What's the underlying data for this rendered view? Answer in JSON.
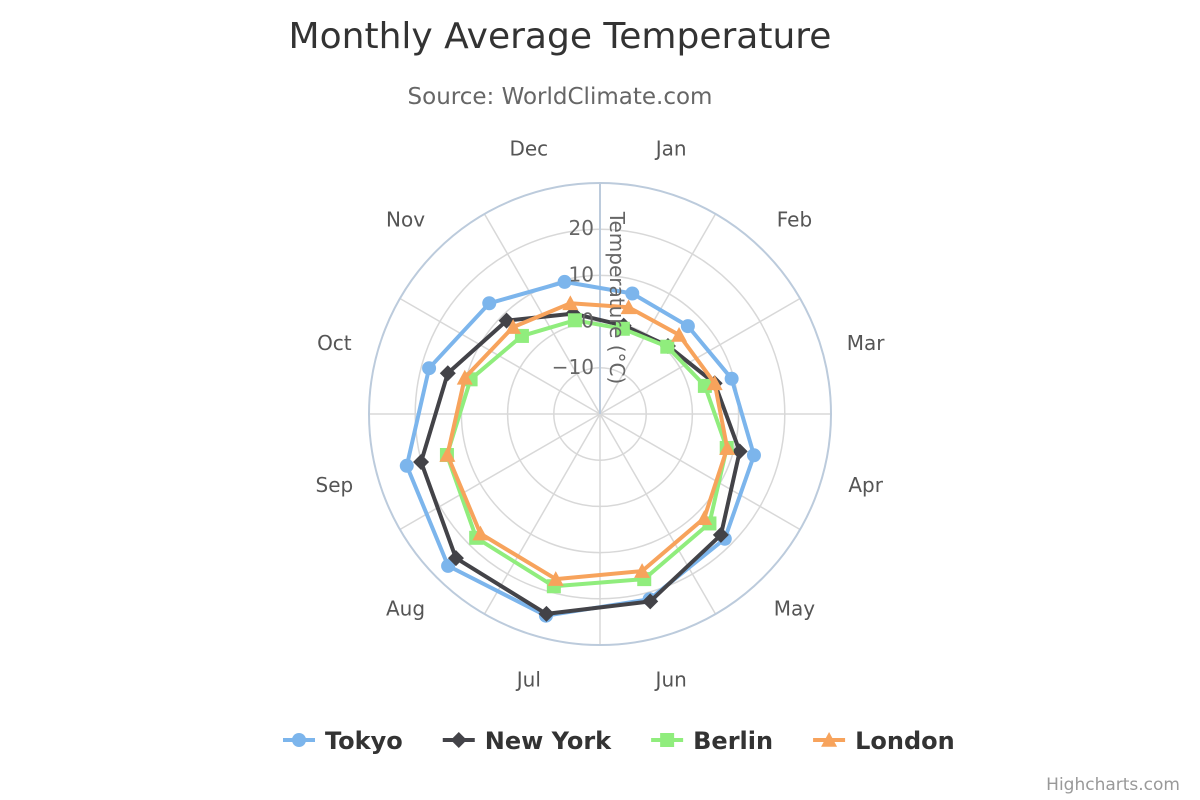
{
  "chart_data": {
    "type": "line",
    "polar": true,
    "title": "Monthly Average Temperature",
    "subtitle": "Source: WorldClimate.com",
    "categories": [
      "Jan",
      "Feb",
      "Mar",
      "Apr",
      "May",
      "Jun",
      "Jul",
      "Aug",
      "Sep",
      "Oct",
      "Nov",
      "Dec"
    ],
    "y_axis_title": "Temperature (°C)",
    "y_ticks": [
      -10,
      0,
      10,
      20
    ],
    "ylim": [
      -20,
      30
    ],
    "grid": true,
    "legend_position": "bottom-center",
    "series": [
      {
        "name": "Tokyo",
        "marker": "circle",
        "color": "#7cb5ec",
        "values": [
          7.0,
          6.9,
          9.5,
          14.5,
          18.2,
          21.5,
          25.2,
          26.5,
          23.3,
          18.3,
          13.9,
          9.6
        ]
      },
      {
        "name": "New York",
        "marker": "diamond",
        "color": "#434348",
        "values": [
          -0.2,
          0.8,
          5.7,
          11.3,
          17.0,
          22.0,
          24.8,
          24.1,
          20.1,
          14.1,
          8.6,
          2.5
        ]
      },
      {
        "name": "Berlin",
        "marker": "square",
        "color": "#90ed7d",
        "values": [
          -0.9,
          0.6,
          3.5,
          8.4,
          13.5,
          17.0,
          18.6,
          17.9,
          14.3,
          9.0,
          3.9,
          1.0
        ]
      },
      {
        "name": "London",
        "marker": "triangle",
        "color": "#f7a35c",
        "values": [
          3.9,
          4.2,
          5.7,
          8.5,
          11.9,
          15.2,
          17.0,
          16.6,
          14.2,
          10.3,
          6.6,
          4.8
        ]
      }
    ]
  },
  "credits": "Highcharts.com"
}
